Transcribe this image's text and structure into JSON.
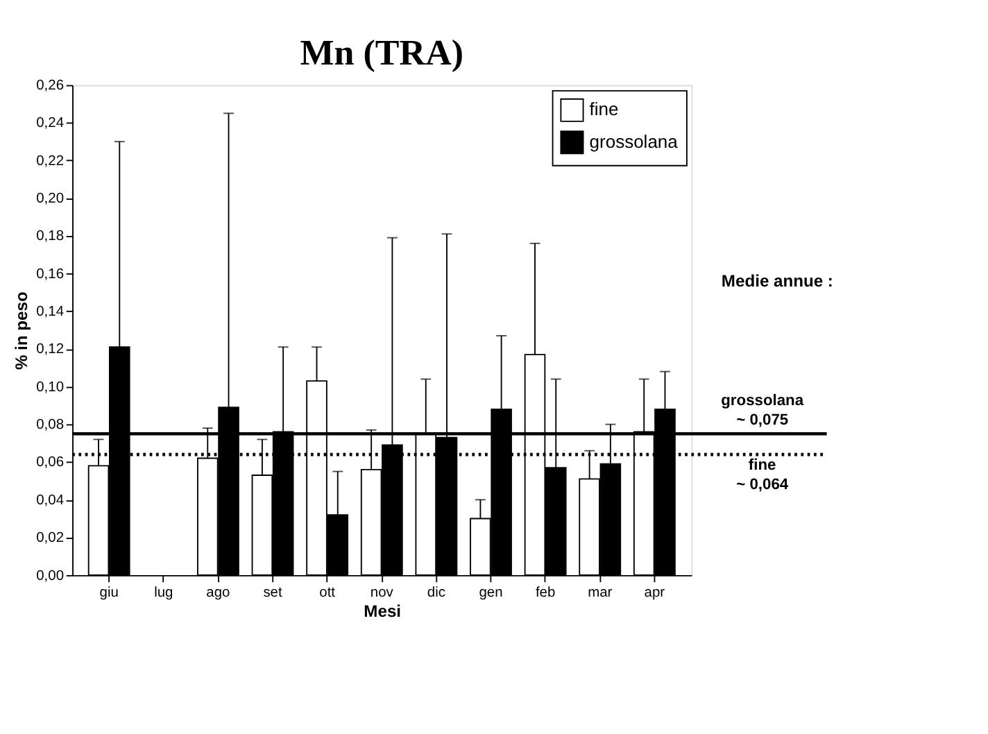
{
  "chart_data": {
    "type": "bar",
    "title": "Mn (TRA)",
    "xlabel": "Mesi",
    "ylabel": "% in peso",
    "categories": [
      "giu",
      "lug",
      "ago",
      "set",
      "ott",
      "nov",
      "dic",
      "gen",
      "feb",
      "mar",
      "apr"
    ],
    "series": [
      {
        "name": "fine",
        "color": "#ffffff",
        "values": [
          0.058,
          null,
          0.062,
          0.053,
          0.103,
          0.056,
          0.075,
          0.03,
          0.117,
          0.051,
          0.076
        ],
        "errors": [
          [
            0.058,
            0.072
          ],
          null,
          [
            0.062,
            0.078
          ],
          [
            0.053,
            0.072
          ],
          [
            0.103,
            0.121
          ],
          [
            0.056,
            0.077
          ],
          [
            0.075,
            0.104
          ],
          [
            0.03,
            0.04
          ],
          [
            0.117,
            0.176
          ],
          [
            0.051,
            0.066
          ],
          [
            0.076,
            0.104
          ]
        ]
      },
      {
        "name": "grossolana",
        "color": "#000000",
        "values": [
          0.121,
          null,
          0.089,
          0.076,
          0.032,
          0.069,
          0.073,
          0.088,
          0.057,
          0.059,
          0.088
        ],
        "errors": [
          [
            0.121,
            0.23
          ],
          null,
          [
            0.089,
            0.245
          ],
          [
            0.076,
            0.121
          ],
          [
            0.032,
            0.055
          ],
          [
            0.069,
            0.179
          ],
          [
            0.073,
            0.181
          ],
          [
            0.088,
            0.127
          ],
          [
            0.057,
            0.104
          ],
          [
            0.059,
            0.08
          ],
          [
            0.088,
            0.108
          ]
        ]
      }
    ],
    "ylim": [
      0,
      0.26
    ],
    "yticks": [
      {
        "value": 0,
        "label": "0,00"
      },
      {
        "value": 0.02,
        "label": "0,02"
      },
      {
        "value": 0.04,
        "label": "0,04"
      },
      {
        "value": 0.06,
        "label": "0,06"
      },
      {
        "value": 0.08,
        "label": "0,08"
      },
      {
        "value": 0.1,
        "label": "0,10"
      },
      {
        "value": 0.12,
        "label": "0,12"
      },
      {
        "value": 0.14,
        "label": "0,14"
      },
      {
        "value": 0.16,
        "label": "0,16"
      },
      {
        "value": 0.18,
        "label": "0,18"
      },
      {
        "value": 0.2,
        "label": "0,20"
      },
      {
        "value": 0.22,
        "label": "0,22"
      },
      {
        "value": 0.24,
        "label": "0,24"
      },
      {
        "value": 0.26,
        "label": "0,26"
      }
    ],
    "ref_lines": [
      {
        "axis": "y",
        "value": 0.075,
        "label": "grossolana\n~ 0,075",
        "color": "#000000",
        "line_style": "solid"
      },
      {
        "axis": "y",
        "value": 0.064,
        "label": "fine\n~ 0,064",
        "color": "#000000",
        "line_style": "dotted"
      }
    ],
    "annotations": [
      "Medie annue :"
    ],
    "legend": "top right",
    "grid": false
  }
}
